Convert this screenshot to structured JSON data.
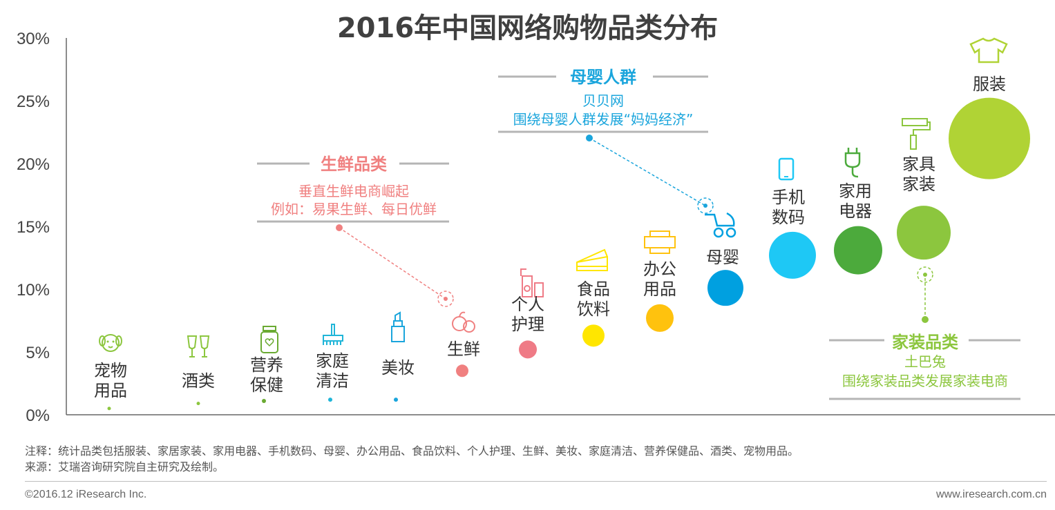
{
  "title": "2016年中国网络购物品类分布",
  "colors": {
    "axis": "#666666",
    "annotation_line": "#b5b5b5",
    "fresh": "#f08080",
    "baby": "#1aa5dc",
    "home": "#8cc63e"
  },
  "chart_data": {
    "type": "scatter",
    "title": "2016年中国网络购物品类分布",
    "ylim": [
      0,
      30
    ],
    "yticks": [
      "0%",
      "5%",
      "10%",
      "15%",
      "20%",
      "25%",
      "30%"
    ],
    "grid": false,
    "points": [
      {
        "label": "宠物\n用品",
        "value": 0.5,
        "color": "#8cc63e",
        "icon": "dog-icon"
      },
      {
        "label": "酒类",
        "value": 0.9,
        "color": "#8cc63e",
        "icon": "wine-glasses-icon"
      },
      {
        "label": "营养\n保健",
        "value": 1.1,
        "color": "#6aaa32",
        "icon": "supplement-jar-icon"
      },
      {
        "label": "家庭\n清洁",
        "value": 1.2,
        "color": "#1fb5d8",
        "icon": "broom-icon"
      },
      {
        "label": "美妆",
        "value": 1.2,
        "color": "#1aa5dc",
        "icon": "lipstick-icon"
      },
      {
        "label": "生鲜",
        "value": 3.5,
        "color": "#f08080",
        "icon": "fruit-icon"
      },
      {
        "label": "个人\n护理",
        "value": 5.2,
        "color": "#ef7b86",
        "icon": "toiletries-icon"
      },
      {
        "label": "食品\n饮料",
        "value": 6.3,
        "color": "#ffe600",
        "icon": "cake-icon"
      },
      {
        "label": "办公\n用品",
        "value": 7.7,
        "color": "#ffc20e",
        "icon": "printer-icon"
      },
      {
        "label": "母婴",
        "value": 10.1,
        "color": "#00a0e0",
        "icon": "stroller-icon"
      },
      {
        "label": "手机\n数码",
        "value": 12.7,
        "color": "#1ec8f5",
        "icon": "phone-icon"
      },
      {
        "label": "家用\n电器",
        "value": 13.1,
        "color": "#4caa3c",
        "icon": "plug-icon"
      },
      {
        "label": "家具\n家装",
        "value": 14.5,
        "color": "#8cc63e",
        "icon": "paint-roller-icon"
      },
      {
        "label": "服装",
        "value": 22.0,
        "color": "#b0d335",
        "icon": "tshirt-icon"
      }
    ],
    "annotations": [
      {
        "heading": "生鲜品类",
        "lines": [
          "垂直生鲜电商崛起",
          "例如：易果生鲜、每日优鲜"
        ],
        "color": "#f08080",
        "target": "生鲜"
      },
      {
        "heading": "母婴人群",
        "lines": [
          "贝贝网",
          "围绕母婴人群发展“妈妈经济”"
        ],
        "color": "#1aa5dc",
        "target": "母婴"
      },
      {
        "heading": "家装品类",
        "lines": [
          "土巴兔",
          "围绕家装品类发展家装电商"
        ],
        "color": "#8cc63e",
        "target": "家具家装"
      }
    ]
  },
  "footer": {
    "note": "注释：统计品类包括服装、家居家装、家用电器、手机数码、母婴、办公用品、食品饮料、个人护理、生鲜、美妆、家庭清洁、营养保健品、酒类、宠物用品。",
    "source": "来源：艾瑞咨询研究院自主研究及绘制。",
    "copyright": "©2016.12 iResearch Inc.",
    "url": "www.iresearch.com.cn"
  }
}
